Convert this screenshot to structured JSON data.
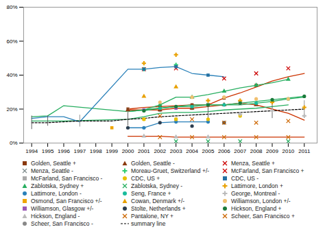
{
  "chart_data": {
    "type": "line",
    "xlim": [
      1993.5,
      2011.8
    ],
    "xticks": [
      1994,
      1995,
      1996,
      1997,
      1998,
      1999,
      2000,
      2001,
      2002,
      2003,
      2004,
      2005,
      2006,
      2007,
      2008,
      2009,
      2010,
      2011
    ],
    "ylim": [
      0,
      0.8
    ],
    "yticks": [
      {
        "value": 0.0,
        "label": "0%"
      },
      {
        "value": 0.2,
        "label": "20%"
      },
      {
        "value": 0.4,
        "label": "40%"
      },
      {
        "value": 0.6,
        "label": "60%"
      },
      {
        "value": 0.8,
        "label": "80%"
      }
    ],
    "grid": false,
    "legend": "bottom",
    "series": [
      {
        "type": "line",
        "color": "#cc3300",
        "line_style": "solid",
        "x": [
          2000,
          2001,
          2002,
          2003,
          2004,
          2005,
          2006,
          2007,
          2008,
          2009,
          2010,
          2011
        ],
        "values": [
          0.2,
          0.21,
          0.215,
          0.22,
          0.225,
          0.225,
          0.265,
          0.295,
          0.33,
          0.365,
          0.39,
          0.41
        ]
      },
      {
        "type": "line",
        "color": "#cc3300",
        "line_style": "solid",
        "x": [
          2000,
          2001,
          2002,
          2003,
          2004,
          2005,
          2006,
          2007,
          2008,
          2009,
          2010,
          2011
        ],
        "values": [
          0.195,
          0.195,
          0.195,
          0.205,
          0.205,
          0.215,
          0.225,
          0.235,
          0.225,
          0.2,
          0.175,
          0.135
        ]
      },
      {
        "type": "line",
        "color": "#cc3300",
        "line_style": "solid",
        "x": [
          2000,
          2001,
          2002,
          2003,
          2004,
          2005,
          2006,
          2007,
          2008,
          2009,
          2010,
          2011
        ],
        "values": [
          0.04,
          0.04,
          0.04,
          0.035,
          0.035,
          0.035,
          0.035,
          0.035,
          0.035,
          0.035,
          0.035,
          0.035
        ]
      },
      {
        "type": "line",
        "color": "#27ae60",
        "line_style": "solid",
        "x": [
          1994,
          1995,
          1996,
          2000,
          2001,
          2002,
          2003,
          2004,
          2005,
          2006,
          2007,
          2008,
          2009,
          2010
        ],
        "values": [
          0.155,
          0.16,
          0.22,
          0.185,
          0.195,
          0.225,
          0.27,
          0.27,
          0.285,
          0.305,
          0.325,
          0.34,
          0.355,
          0.375
        ]
      },
      {
        "type": "line",
        "color": "#27ae60",
        "line_style": "solid",
        "x": [
          1994,
          1995,
          1996,
          2000,
          2001,
          2002,
          2003,
          2004,
          2005,
          2006,
          2007,
          2008,
          2009,
          2010
        ],
        "values": [
          0.13,
          0.13,
          0.13,
          0.14,
          0.155,
          0.175,
          0.18,
          0.18,
          0.185,
          0.195,
          0.2,
          0.205,
          0.215,
          0.225
        ]
      },
      {
        "type": "line",
        "color": "#27ae60",
        "line_style": "solid",
        "x": [
          2001,
          2002,
          2003,
          2004,
          2005,
          2006,
          2007,
          2008,
          2009,
          2010,
          2011
        ],
        "values": [
          0.19,
          0.205,
          0.215,
          0.215,
          0.225,
          0.225,
          0.225,
          0.235,
          0.245,
          0.26,
          0.27
        ]
      },
      {
        "type": "line",
        "color": "#27ae60",
        "line_style": "solid",
        "x": [
          2000,
          2001,
          2002,
          2003,
          2004,
          2005,
          2006,
          2007,
          2008,
          2009,
          2010,
          2011
        ],
        "values": [
          0.185,
          0.195,
          0.205,
          0.215,
          0.225,
          0.225,
          0.225,
          0.235,
          0.245,
          0.255,
          0.265,
          0.275
        ]
      },
      {
        "type": "line",
        "color": "#2980b9",
        "line_style": "solid",
        "x": [
          1994,
          1995,
          1996,
          1997,
          2000,
          2001,
          2002,
          2003,
          2004,
          2005,
          2006
        ],
        "values": [
          0.145,
          0.155,
          0.155,
          0.125,
          0.435,
          0.435,
          0.445,
          0.45,
          0.41,
          0.4,
          0.39
        ]
      },
      {
        "type": "line",
        "color": "#2980b9",
        "line_style": "solid",
        "x": [
          2000,
          2001,
          2002,
          2003,
          2004,
          2005
        ],
        "values": [
          0.09,
          0.09,
          0.12,
          0.125,
          0.125,
          0.125
        ]
      },
      {
        "name": "summary line",
        "type": "line",
        "color": "#000000",
        "line_style": "dashed",
        "x": [
          1994,
          1995,
          1996,
          1997,
          1998,
          1999,
          2000,
          2001,
          2002,
          2003,
          2004,
          2005,
          2006,
          2007,
          2008,
          2009,
          2010,
          2011
        ],
        "values": [
          0.12,
          0.12,
          0.125,
          0.13,
          0.13,
          0.13,
          0.14,
          0.145,
          0.155,
          0.16,
          0.165,
          0.17,
          0.175,
          0.18,
          0.185,
          0.19,
          0.195,
          0.2
        ]
      },
      {
        "name": "Golden, Seattle +",
        "type": "scatter",
        "color": "#8B3A0F",
        "marker": "square",
        "x": [
          2000,
          2002,
          2004,
          2006,
          2008
        ],
        "values": [
          0.2,
          0.215,
          0.225,
          0.265,
          0.34
        ]
      },
      {
        "name": "Menza, Seattle -",
        "type": "scatter",
        "color": "#7f8c8d",
        "marker": "x",
        "x": [
          2005,
          2007
        ],
        "values": [
          0.225,
          0.235
        ]
      },
      {
        "name": "McFarland, San Francisco -",
        "type": "scatter",
        "color": "#aaaaaa",
        "marker": "square",
        "x": [
          2000,
          2002,
          2004
        ],
        "values": [
          0.195,
          0.195,
          0.205
        ]
      },
      {
        "name": "Zablotska, Sydney +",
        "type": "scatter",
        "color": "#27ae60",
        "marker": "triangle",
        "x": [
          2002,
          2004,
          2006,
          2008,
          2010
        ],
        "values": [
          0.225,
          0.27,
          0.305,
          0.34,
          0.375
        ]
      },
      {
        "name": "Lattimore, London -",
        "type": "scatter",
        "color": "#2980b9",
        "marker": "circle",
        "x": [
          2001,
          2003,
          2005
        ],
        "values": [
          0.09,
          0.125,
          0.125
        ]
      },
      {
        "name": "Osmond, San Francisco +/-",
        "type": "scatter",
        "color": "#f0a500",
        "marker": "square",
        "x": [
          1999,
          2001,
          2003
        ],
        "values": [
          0.09,
          0.14,
          0.14
        ]
      },
      {
        "name": "Williamson, Glasgow +/-",
        "type": "scatter",
        "color": "#9b59b6",
        "marker": "square",
        "x": [
          2001,
          2003
        ],
        "values": [
          0.195,
          0.205
        ]
      },
      {
        "name": "Hickson, England -",
        "type": "scatter",
        "color": "#bbbbbb",
        "marker": "triangle",
        "x": [
          2001,
          2003,
          2005
        ],
        "values": [
          0.04,
          0.035,
          0.035
        ]
      },
      {
        "name": "Scheer, San Francisco -",
        "type": "scatter",
        "color": "#888888",
        "marker": "circle",
        "x": [
          2002,
          2004
        ],
        "values": [
          0.195,
          0.205
        ]
      },
      {
        "name": "Golden, Seattle -",
        "type": "scatter",
        "color": "#8B3A0F",
        "marker": "triangle",
        "x": [
          2000,
          2002,
          2004,
          2006,
          2008
        ],
        "values": [
          0.195,
          0.195,
          0.205,
          0.225,
          0.225
        ]
      },
      {
        "name": "Moreau-Gruet, Switzerland +/-",
        "type": "scatter",
        "color": "#2ecc71",
        "marker": "plus",
        "x": [
          2001,
          2003
        ],
        "values": [
          0.435,
          0.46
        ]
      },
      {
        "name": "CDC, US +",
        "type": "scatter",
        "color": "#e8c000",
        "marker": "circle",
        "x": [
          2001,
          2003,
          2005,
          2007
        ],
        "values": [
          0.14,
          0.14,
          0.14,
          0.16
        ]
      },
      {
        "name": "Zablotska, Sydney -",
        "type": "scatter",
        "color": "#27ae60",
        "marker": "x",
        "x": [
          2003,
          2005,
          2007,
          2010
        ],
        "values": [
          0.01,
          0.01,
          0.01,
          0.01
        ]
      },
      {
        "name": "Seng, France +",
        "type": "scatter",
        "color": "#1abc9c",
        "marker": "circle",
        "x": [
          2002,
          2004,
          2006,
          2008,
          2010
        ],
        "values": [
          0.205,
          0.215,
          0.225,
          0.235,
          0.26
        ]
      },
      {
        "name": "Cowan, Denmark +/-",
        "type": "scatter",
        "color": "#e8a000",
        "marker": "triangle",
        "x": [
          2001,
          2003
        ],
        "values": [
          0.275,
          0.33
        ]
      },
      {
        "name": "Stolte, Netherlands +",
        "type": "scatter",
        "color": "#2c3e50",
        "marker": "circle",
        "x": [
          2000,
          2002,
          2004,
          2006
        ],
        "values": [
          0.09,
          0.12,
          0.1,
          0.12
        ]
      },
      {
        "name": "Pantalone, NY +",
        "type": "scatter",
        "color": "#cc6600",
        "marker": "x",
        "x": [
          2002,
          2004,
          2006,
          2008,
          2010
        ],
        "values": [
          0.035,
          0.035,
          0.035,
          0.035,
          0.035
        ]
      },
      {
        "name": "Menza, Seattle +",
        "type": "scatter",
        "color": "#cc0000",
        "marker": "x",
        "x": [
          2006,
          2008,
          2010
        ],
        "values": [
          0.38,
          0.41,
          0.44
        ]
      },
      {
        "name": "McFarland, San Francisco +",
        "type": "scatter",
        "color": "#cc0000",
        "marker": "x",
        "x": [
          2001,
          2003
        ],
        "values": [
          0.435,
          0.44
        ]
      },
      {
        "name": "CDC, US -",
        "type": "scatter",
        "color": "#2471a3",
        "marker": "square",
        "x": [
          2001,
          2003,
          2005
        ],
        "values": [
          0.435,
          0.45,
          0.4
        ]
      },
      {
        "name": "Lattimore, London +",
        "type": "scatter",
        "color": "#e8a000",
        "marker": "plus",
        "x": [
          2001,
          2003,
          2005,
          2007,
          2009,
          2011
        ],
        "values": [
          0.47,
          0.52,
          0.25,
          0.25,
          0.24,
          0.21
        ]
      },
      {
        "name": "George, Montreal -",
        "type": "scatter",
        "color": "#bbbbbb",
        "marker": "plus",
        "x": [
          2007,
          2009,
          2011
        ],
        "values": [
          0.17,
          0.19,
          0.16
        ]
      },
      {
        "name": "Williamson, London +/-",
        "type": "scatter",
        "color": "#f0c070",
        "marker": "circle",
        "x": [
          2002,
          2004,
          2006,
          2008,
          2010
        ],
        "values": [
          0.24,
          0.27,
          0.27,
          0.26,
          0.26
        ]
      },
      {
        "name": "Hickson, England +",
        "type": "scatter",
        "color": "#1a7a3a",
        "marker": "circle",
        "x": [
          2001,
          2003,
          2005,
          2007,
          2009,
          2011
        ],
        "values": [
          0.19,
          0.215,
          0.225,
          0.235,
          0.255,
          0.275
        ]
      },
      {
        "name": "Scheer, San Francisco +",
        "type": "scatter",
        "color": "#cc6600",
        "marker": "x",
        "x": [
          2002,
          2004,
          2006,
          2008,
          2010
        ],
        "values": [
          0.16,
          0.14,
          0.12,
          0.12,
          0.13
        ]
      }
    ],
    "error_bars": [
      {
        "x": 1994,
        "y": 0.12,
        "yerr": 0.04,
        "color": "#555555"
      },
      {
        "x": 1995,
        "y": 0.13,
        "yerr": 0.03,
        "color": "#555555"
      },
      {
        "x": 1997,
        "y": 0.13,
        "yerr": 0.035,
        "color": "#888888"
      },
      {
        "x": 2000,
        "y": 0.14,
        "yerr": 0.04,
        "color": "#555555"
      },
      {
        "x": 2005,
        "y": 0.17,
        "yerr": 0.04,
        "color": "#555555"
      },
      {
        "x": 2009,
        "y": 0.19,
        "yerr": 0.045,
        "color": "#555555"
      },
      {
        "x": 2011,
        "y": 0.2,
        "yerr": 0.05,
        "color": "#888888"
      }
    ],
    "legend_columns": [
      [
        "Golden, Seattle +",
        "Menza, Seattle -",
        "McFarland, San Francisco -",
        "Zablotska, Sydney +",
        "Lattimore, London -",
        "Osmond, San Francisco +/-",
        "Williamson, Glasgow +/-",
        "Hickson, England -",
        "Scheer, San Francisco -"
      ],
      [
        "Golden, Seattle -",
        "Moreau-Gruet, Switzerland +/-",
        "CDC, US +",
        "Zablotska, Sydney -",
        "Seng, France +",
        "Cowan, Denmark +/-",
        "Stolte, Netherlands +",
        "Pantalone, NY +",
        "summary line"
      ],
      [
        "Menza, Seattle +",
        "McFarland, San Francisco +",
        "CDC, US -",
        "Lattimore, London +",
        "George, Montreal -",
        "Williamson, London +/-",
        "Hickson, England +",
        "Scheer, San Francisco +"
      ]
    ]
  }
}
